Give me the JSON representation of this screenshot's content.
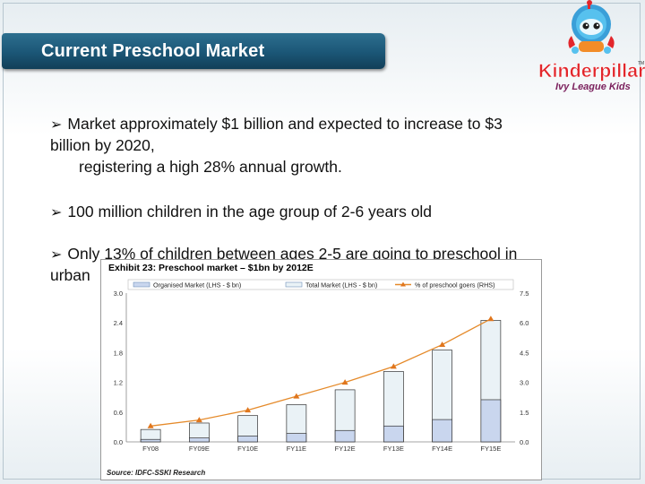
{
  "slide": {
    "title": "Current Preschool Market",
    "bullets": [
      {
        "line1": "Market approximately $1 billion and expected to increase to $3",
        "line2": "billion by 2020,",
        "line3": "registering a high 28% annual growth."
      },
      {
        "line1": "100 million children in the age group of 2-6 years old"
      },
      {
        "line1": "Only 13% of children between ages 2-5 are going to preschool in",
        "line2": "urban"
      }
    ]
  },
  "logo": {
    "brand": "Kinderpillar",
    "tm": "TM",
    "tagline": "Ivy League Kids"
  },
  "colors": {
    "title_bar": "#1b5676",
    "organised": "#c9d6ee",
    "total": "#eaf2f6",
    "line": "#e58a2a",
    "marker": "#e0761d"
  },
  "chart_data": {
    "type": "bar",
    "title": "Exhibit 23: Preschool market – $1bn by 2012E",
    "source": "Source: IDFC-SSKI Research",
    "categories": [
      "FY08",
      "FY09E",
      "FY10E",
      "FY11E",
      "FY12E",
      "FY13E",
      "FY14E",
      "FY15E"
    ],
    "series": [
      {
        "name": "Organised Market (LHS - $ bn)",
        "axis": "left",
        "values": [
          0.05,
          0.08,
          0.12,
          0.17,
          0.23,
          0.32,
          0.45,
          0.85
        ]
      },
      {
        "name": "Total Market (LHS - $ bn)",
        "axis": "left",
        "values": [
          0.25,
          0.38,
          0.53,
          0.75,
          1.05,
          1.42,
          1.85,
          2.45
        ]
      },
      {
        "name": "% of preschool goers (RHS)",
        "axis": "right",
        "type": "line",
        "values": [
          0.8,
          1.1,
          1.6,
          2.3,
          3.0,
          3.8,
          4.9,
          6.2
        ]
      }
    ],
    "y_left": {
      "min": 0,
      "max": 3.0,
      "ticks": [
        "0.0",
        "0.6",
        "1.2",
        "1.8",
        "2.4",
        "3.0"
      ]
    },
    "y_right": {
      "min": 0,
      "max": 7.5,
      "ticks": [
        "0.0",
        "1.5",
        "3.0",
        "4.5",
        "6.0",
        "7.5"
      ]
    },
    "legend_position": "top"
  }
}
